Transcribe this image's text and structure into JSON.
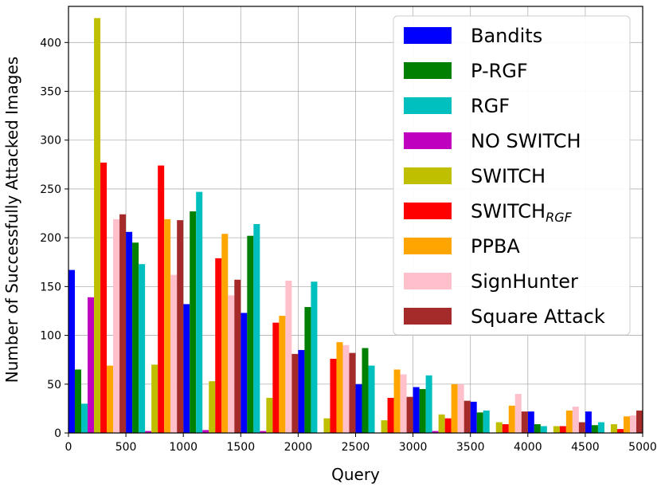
{
  "chart_data": {
    "type": "bar",
    "xlabel": "Query",
    "ylabel": "Number of Successfully Attacked Images",
    "xlim": [
      0,
      5000
    ],
    "ylim": [
      0,
      437
    ],
    "x_ticks": [
      "0",
      "500",
      "1000",
      "1500",
      "2000",
      "2500",
      "3000",
      "3500",
      "4000",
      "4500",
      "5000"
    ],
    "y_ticks": [
      "0",
      "50",
      "100",
      "150",
      "200",
      "250",
      "300",
      "350",
      "400"
    ],
    "grid": true,
    "legend_position": "top-right",
    "bin_centers": [
      250,
      750,
      1250,
      1750,
      2250,
      2750,
      3250,
      3750,
      4250,
      4750
    ],
    "series": [
      {
        "name": "Bandits",
        "color": "#0000ff",
        "values": [
          167,
          206,
          132,
          123,
          85,
          50,
          47,
          32,
          22,
          22
        ]
      },
      {
        "name": "P-RGF",
        "color": "#008000",
        "values": [
          65,
          195,
          227,
          202,
          129,
          87,
          45,
          21,
          9,
          8
        ]
      },
      {
        "name": "RGF",
        "color": "#00bfbf",
        "values": [
          30,
          173,
          247,
          214,
          155,
          69,
          59,
          23,
          7,
          11
        ]
      },
      {
        "name": "NO SWITCH",
        "color": "#bf00bf",
        "values": [
          139,
          2,
          3,
          2,
          0,
          0,
          2,
          0,
          0,
          0
        ]
      },
      {
        "name": "SWITCH",
        "color": "#bfbf00",
        "values": [
          425,
          70,
          53,
          36,
          15,
          13,
          19,
          11,
          7,
          9
        ]
      },
      {
        "name": "SWITCH",
        "name_subscript": "RGF",
        "color": "#ff0000",
        "values": [
          277,
          274,
          179,
          113,
          76,
          36,
          15,
          9,
          7,
          4
        ]
      },
      {
        "name": "PPBA",
        "color": "#ffa500",
        "values": [
          69,
          219,
          204,
          120,
          93,
          65,
          50,
          28,
          23,
          17
        ]
      },
      {
        "name": "SignHunter",
        "color": "#ffc0cb",
        "values": [
          219,
          162,
          141,
          156,
          90,
          60,
          50,
          40,
          27,
          18
        ]
      },
      {
        "name": "Square Attack",
        "color": "#a52a2a",
        "values": [
          224,
          218,
          157,
          81,
          82,
          37,
          33,
          22,
          11,
          23
        ]
      }
    ]
  }
}
